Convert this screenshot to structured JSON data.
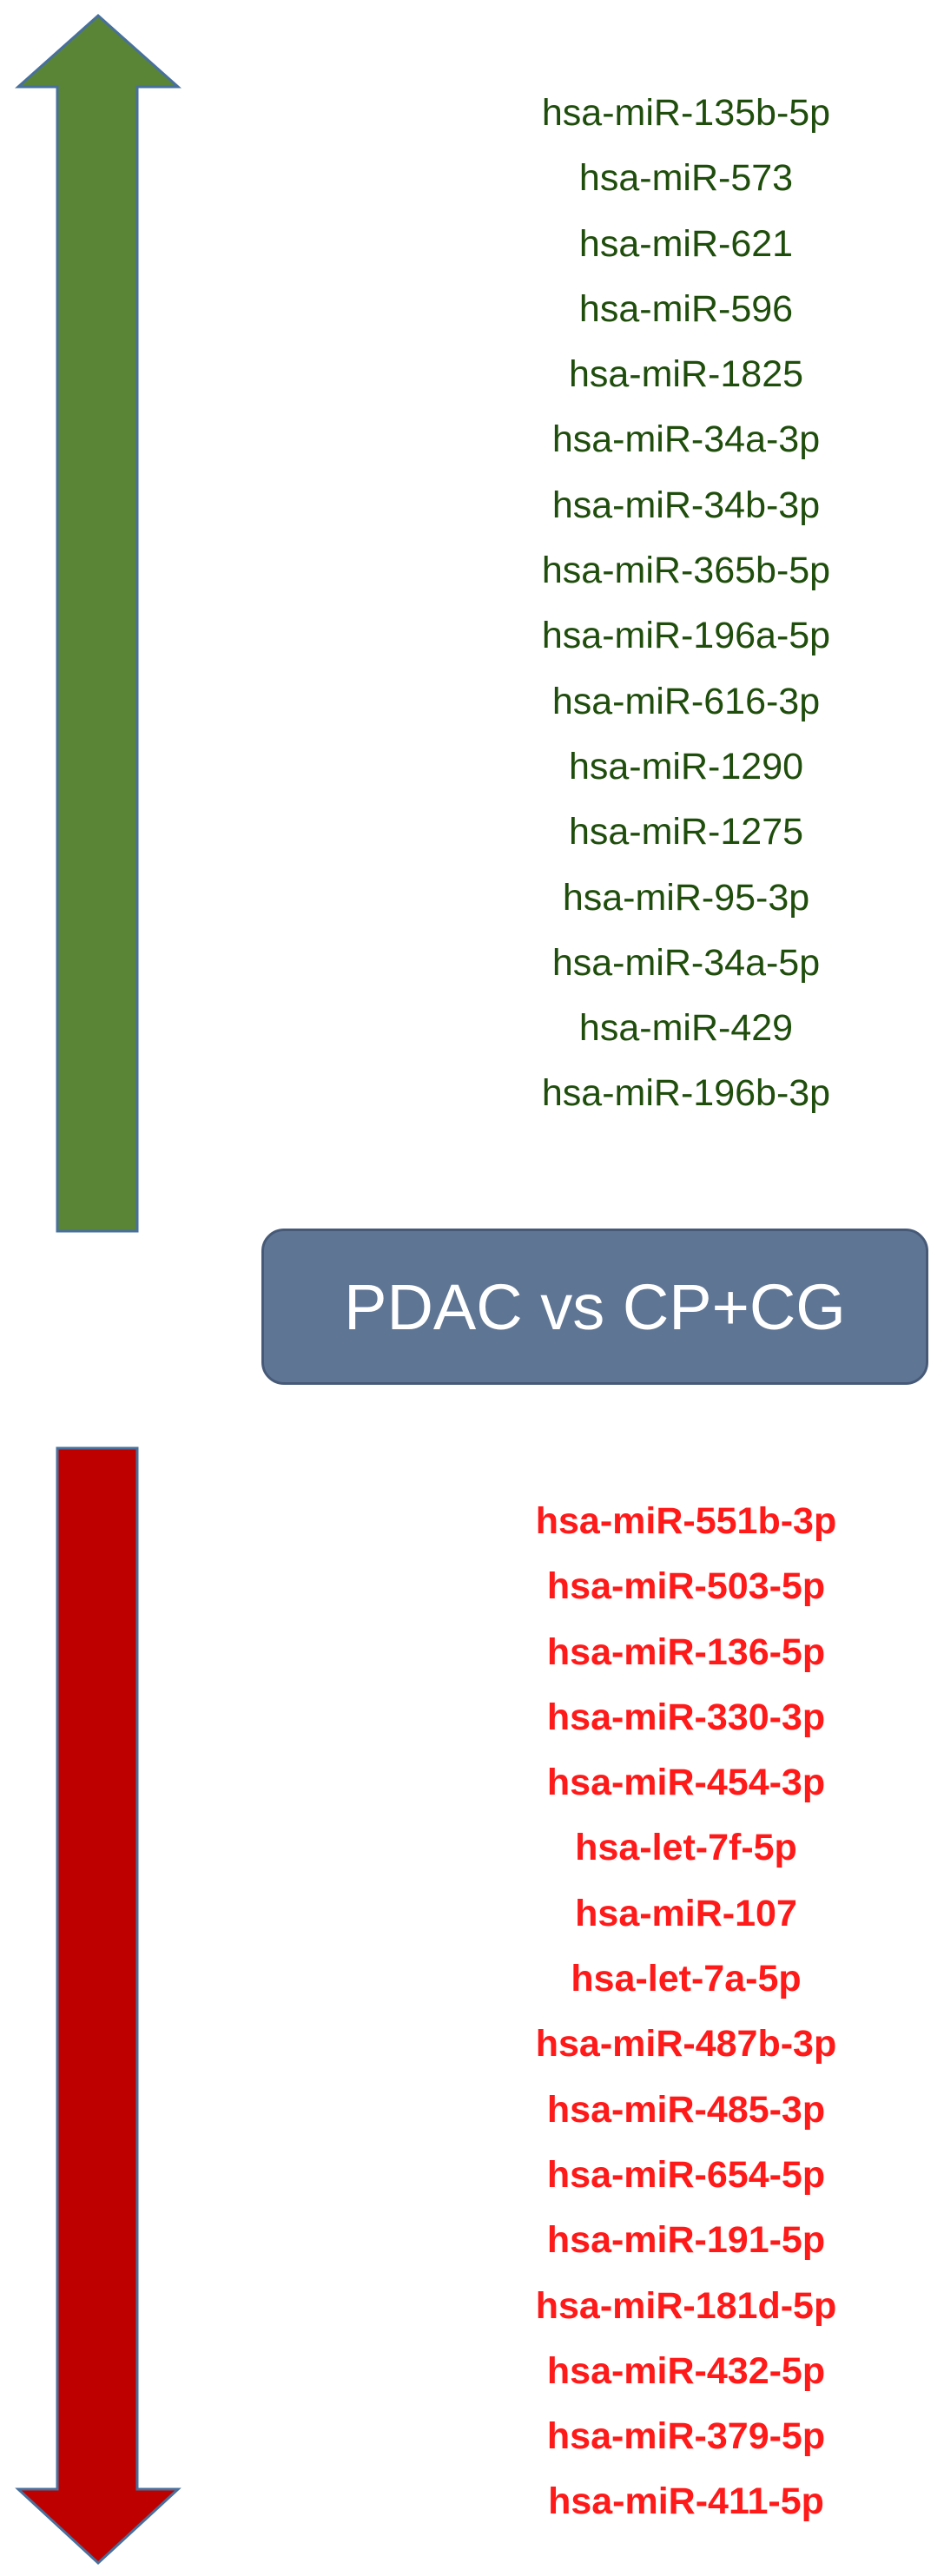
{
  "colors": {
    "up_arrow_fill": "#5a8436",
    "up_arrow_stroke": "#48709c",
    "down_arrow_fill": "#bf0000",
    "down_arrow_stroke": "#48709c",
    "up_text": "#1f4d0c",
    "down_text": "#ff1a1a",
    "box_fill": "#5f7594"
  },
  "up_arrow": {
    "direction": "up",
    "icon": "arrow-up-icon"
  },
  "down_arrow": {
    "direction": "down",
    "icon": "arrow-down-icon"
  },
  "comparison": {
    "label": "PDAC vs CP+CG"
  },
  "upregulated": [
    "hsa-miR-135b-5p",
    "hsa-miR-573",
    "hsa-miR-621",
    "hsa-miR-596",
    "hsa-miR-1825",
    "hsa-miR-34a-3p",
    "hsa-miR-34b-3p",
    "hsa-miR-365b-5p",
    "hsa-miR-196a-5p",
    "hsa-miR-616-3p",
    "hsa-miR-1290",
    "hsa-miR-1275",
    "hsa-miR-95-3p",
    "hsa-miR-34a-5p",
    "hsa-miR-429",
    "hsa-miR-196b-3p"
  ],
  "downregulated": [
    "hsa-miR-551b-3p",
    "hsa-miR-503-5p",
    "hsa-miR-136-5p",
    "hsa-miR-330-3p",
    "hsa-miR-454-3p",
    "hsa-let-7f-5p",
    "hsa-miR-107",
    "hsa-let-7a-5p",
    "hsa-miR-487b-3p",
    "hsa-miR-485-3p",
    "hsa-miR-654-5p",
    "hsa-miR-191-5p",
    "hsa-miR-181d-5p",
    "hsa-miR-432-5p",
    "hsa-miR-379-5p",
    "hsa-miR-411-5p"
  ]
}
